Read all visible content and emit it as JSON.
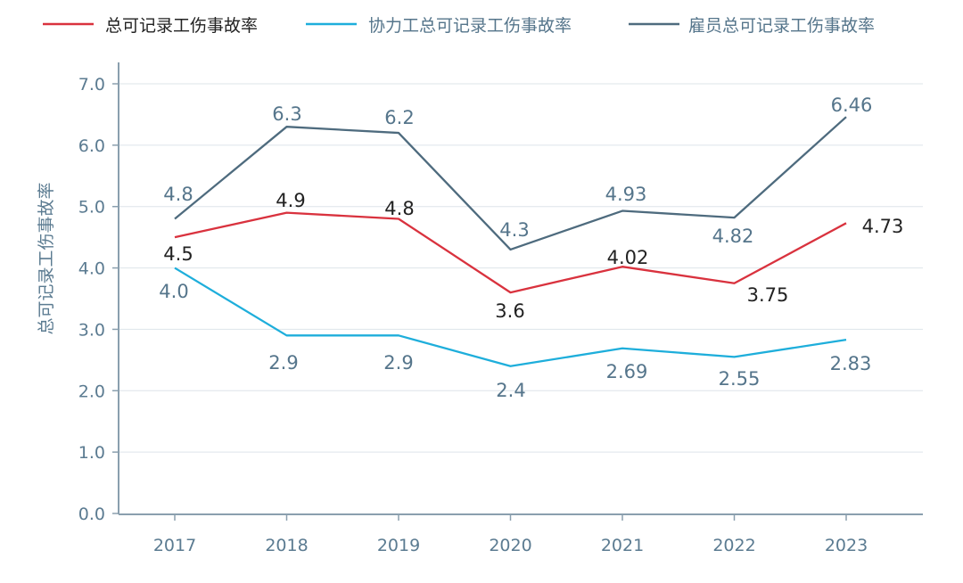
{
  "chart_data": {
    "type": "line",
    "title": "",
    "xlabel": "",
    "ylabel": "总可记录工伤事故率",
    "categories": [
      "2017",
      "2018",
      "2019",
      "2020",
      "2021",
      "2022",
      "2023"
    ],
    "ylim": [
      0,
      7.0
    ],
    "yticks": [
      "0.0",
      "1.0",
      "2.0",
      "3.0",
      "4.0",
      "5.0",
      "6.0",
      "7.0"
    ],
    "grid": true,
    "legend": "top",
    "series": [
      {
        "name": "总可记录工伤事故率",
        "color": "#d9323e",
        "label_color": "#222222",
        "values": [
          4.5,
          4.9,
          4.8,
          3.6,
          4.02,
          3.75,
          4.73
        ],
        "labels": [
          "4.5",
          "4.9",
          "4.8",
          "3.6",
          "4.02",
          "3.75",
          "4.73"
        ]
      },
      {
        "name": "协力工总可记录工伤事故率",
        "color": "#1eaedb",
        "label_color": "#55758b",
        "values": [
          4.0,
          2.9,
          2.9,
          2.4,
          2.69,
          2.55,
          2.83
        ],
        "labels": [
          "4.0",
          "2.9",
          "2.9",
          "2.4",
          "2.69",
          "2.55",
          "2.83"
        ]
      },
      {
        "name": "雇员总可记录工伤事故率",
        "color": "#4e6b7e",
        "label_color": "#55758b",
        "values": [
          4.8,
          6.3,
          6.2,
          4.3,
          4.93,
          4.82,
          6.46
        ],
        "labels": [
          "4.8",
          "6.3",
          "6.2",
          "4.3",
          "4.93",
          "4.82",
          "6.46"
        ]
      }
    ]
  }
}
